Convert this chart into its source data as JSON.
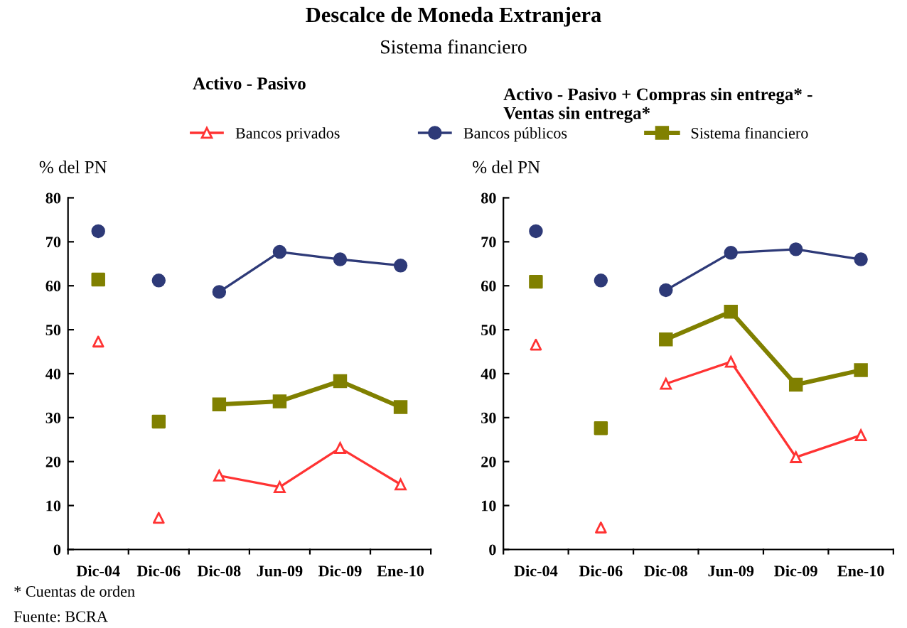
{
  "chart_data": [
    {
      "type": "line",
      "title": "Activo - Pasivo",
      "ylabel": "% del PN",
      "annotations": [
        "Descalce de Moneda Extranjera",
        "Sistema financiero",
        "* Cuentas de orden",
        "Fuente: BCRA"
      ],
      "categories": [
        "Dic-04",
        "Dic-06",
        "Dic-08",
        "Jun-09",
        "Dic-09",
        "Ene-10"
      ],
      "series": [
        {
          "name": "Bancos privados",
          "color": "#ff3333",
          "marker": "triangle",
          "values": [
            null,
            null,
            16.8,
            14.2,
            23.1,
            14.8
          ]
        },
        {
          "name": "Bancos públicos",
          "color": "#2e3a78",
          "marker": "circle",
          "values": [
            null,
            null,
            58.6,
            67.7,
            66.0,
            64.6
          ]
        },
        {
          "name": "Sistema financiero",
          "color": "#808000",
          "marker": "square",
          "values": [
            null,
            null,
            33.0,
            33.7,
            38.3,
            32.4
          ]
        },
        {
          "type": "scatter",
          "color": "#ff3333",
          "marker": "triangle",
          "values": [
            47.3,
            7.2,
            null,
            null,
            null,
            null
          ]
        },
        {
          "type": "scatter",
          "color": "#2e3a78",
          "marker": "circle",
          "values": [
            72.4,
            61.2,
            null,
            null,
            null,
            null
          ]
        },
        {
          "type": "scatter",
          "color": "#808000",
          "marker": "square",
          "values": [
            61.4,
            29.1,
            null,
            null,
            null,
            null
          ]
        }
      ],
      "ylim": [
        0,
        80
      ],
      "yticks": [
        0,
        10,
        20,
        30,
        40,
        50,
        60,
        70,
        80
      ],
      "grid": false,
      "legend": "top"
    },
    {
      "type": "line",
      "title": "Activo - Pasivo + Compras sin entrega* - Ventas sin entrega*",
      "ylabel": "% del PN",
      "categories": [
        "Dic-04",
        "Dic-06",
        "Dic-08",
        "Jun-09",
        "Dic-09",
        "Ene-10"
      ],
      "series": [
        {
          "color": "#ff3333",
          "marker": "triangle",
          "values": [
            null,
            null,
            37.7,
            42.7,
            21.0,
            26.0
          ]
        },
        {
          "color": "#2e3a78",
          "marker": "circle",
          "values": [
            null,
            null,
            59.0,
            67.5,
            68.3,
            66.0
          ]
        },
        {
          "color": "#808000",
          "marker": "square",
          "values": [
            null,
            null,
            47.8,
            54.1,
            37.5,
            40.8
          ]
        },
        {
          "type": "scatter",
          "color": "#ff3333",
          "marker": "triangle",
          "values": [
            46.6,
            5.0,
            null,
            null,
            null,
            null
          ]
        },
        {
          "type": "scatter",
          "color": "#2e3a78",
          "marker": "circle",
          "values": [
            72.4,
            61.2,
            null,
            null,
            null,
            null
          ]
        },
        {
          "type": "scatter",
          "color": "#808000",
          "marker": "square",
          "values": [
            60.9,
            27.6,
            null,
            null,
            null,
            null
          ]
        }
      ],
      "ylim": [
        0,
        80
      ],
      "yticks": [
        0,
        10,
        20,
        30,
        40,
        50,
        60,
        70,
        80
      ],
      "grid": false,
      "legend": false
    }
  ]
}
